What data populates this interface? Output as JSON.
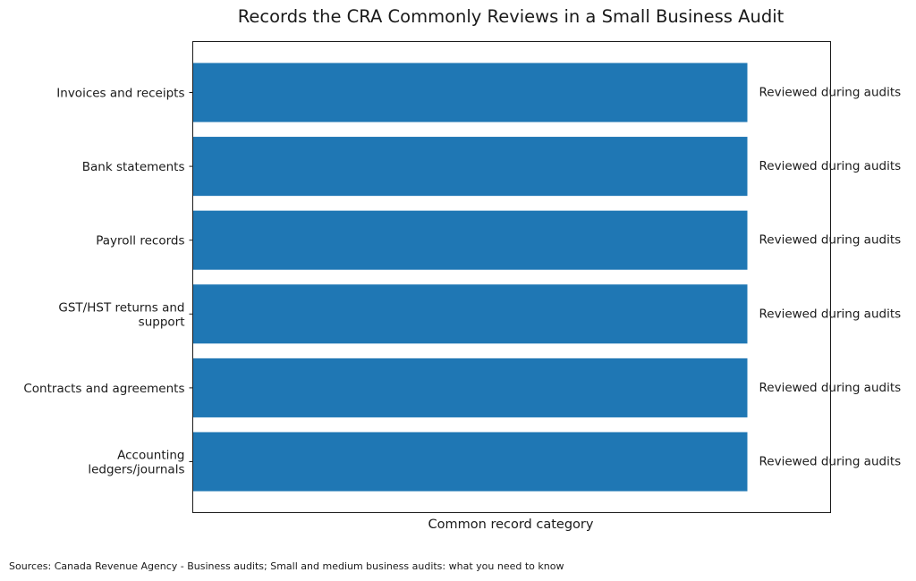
{
  "chart_data": {
    "type": "bar",
    "orientation": "horizontal",
    "title": "Records the CRA Commonly Reviews in a Small Business Audit",
    "xlabel": "Common record category",
    "ylabel": "",
    "categories": [
      "Invoices and receipts",
      "Bank statements",
      "Payroll records",
      "GST/HST returns and support",
      "Contracts and agreements",
      "Accounting ledgers/journals"
    ],
    "category_lines": [
      [
        "Invoices and receipts"
      ],
      [
        "Bank statements"
      ],
      [
        "Payroll records"
      ],
      [
        "GST/HST returns and",
        "support"
      ],
      [
        "Contracts and agreements"
      ],
      [
        "Accounting",
        "ledgers/journals"
      ]
    ],
    "values": [
      1,
      1,
      1,
      1,
      1,
      1
    ],
    "bar_labels": [
      "Reviewed during audits",
      "Reviewed during audits",
      "Reviewed during audits",
      "Reviewed during audits",
      "Reviewed during audits",
      "Reviewed during audits"
    ],
    "xlim": [
      0,
      1.15
    ],
    "x_ticks_visible": false,
    "grid": false,
    "bar_color": "#1f77b4"
  },
  "footnote": "Sources: Canada Revenue Agency - Business audits; Small and medium business audits: what you need to know"
}
